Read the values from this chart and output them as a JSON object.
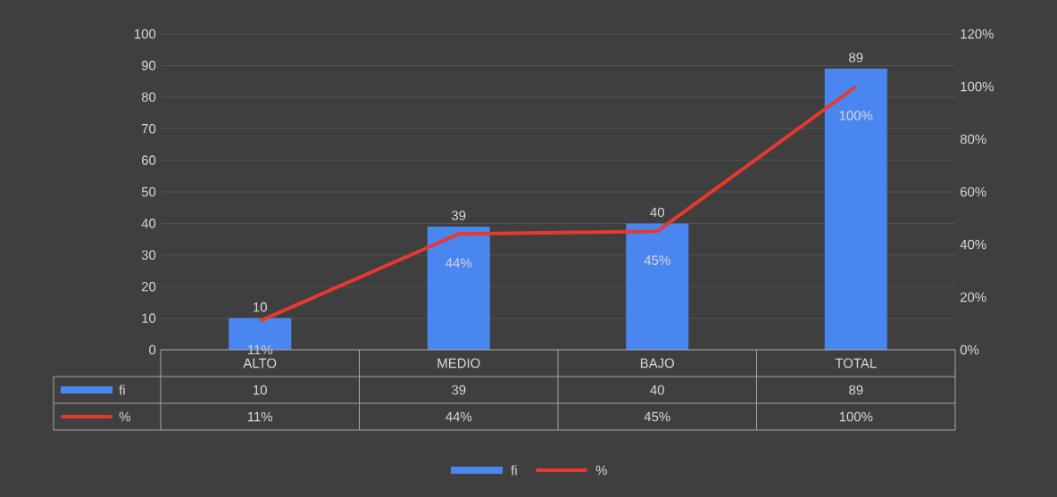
{
  "chart_data": {
    "type": "bar",
    "categories": [
      "ALTO",
      "MEDIO",
      "BAJO",
      "TOTAL"
    ],
    "series": [
      {
        "name": "fi",
        "color": "#4a86f0",
        "values": [
          10,
          39,
          40,
          89
        ],
        "value_labels": [
          "10",
          "39",
          "40",
          "89"
        ]
      },
      {
        "name": "%",
        "type": "line",
        "axis": "y2",
        "color": "#e8392e",
        "values": [
          11,
          44,
          45,
          100
        ],
        "value_labels": [
          "11%",
          "44%",
          "45%",
          "100%"
        ]
      }
    ],
    "ylim": [
      0,
      100
    ],
    "yticks": [
      0,
      10,
      20,
      30,
      40,
      50,
      60,
      70,
      80,
      90,
      100
    ],
    "y2lim": [
      0,
      120
    ],
    "y2ticks": [
      {
        "value": 0,
        "label": "0%"
      },
      {
        "value": 20,
        "label": "20%"
      },
      {
        "value": 40,
        "label": "40%"
      },
      {
        "value": 60,
        "label": "60%"
      },
      {
        "value": 80,
        "label": "80%"
      },
      {
        "value": 100,
        "label": "100%"
      },
      {
        "value": 120,
        "label": "120%"
      }
    ],
    "grid": "y",
    "legend": "bottom"
  }
}
